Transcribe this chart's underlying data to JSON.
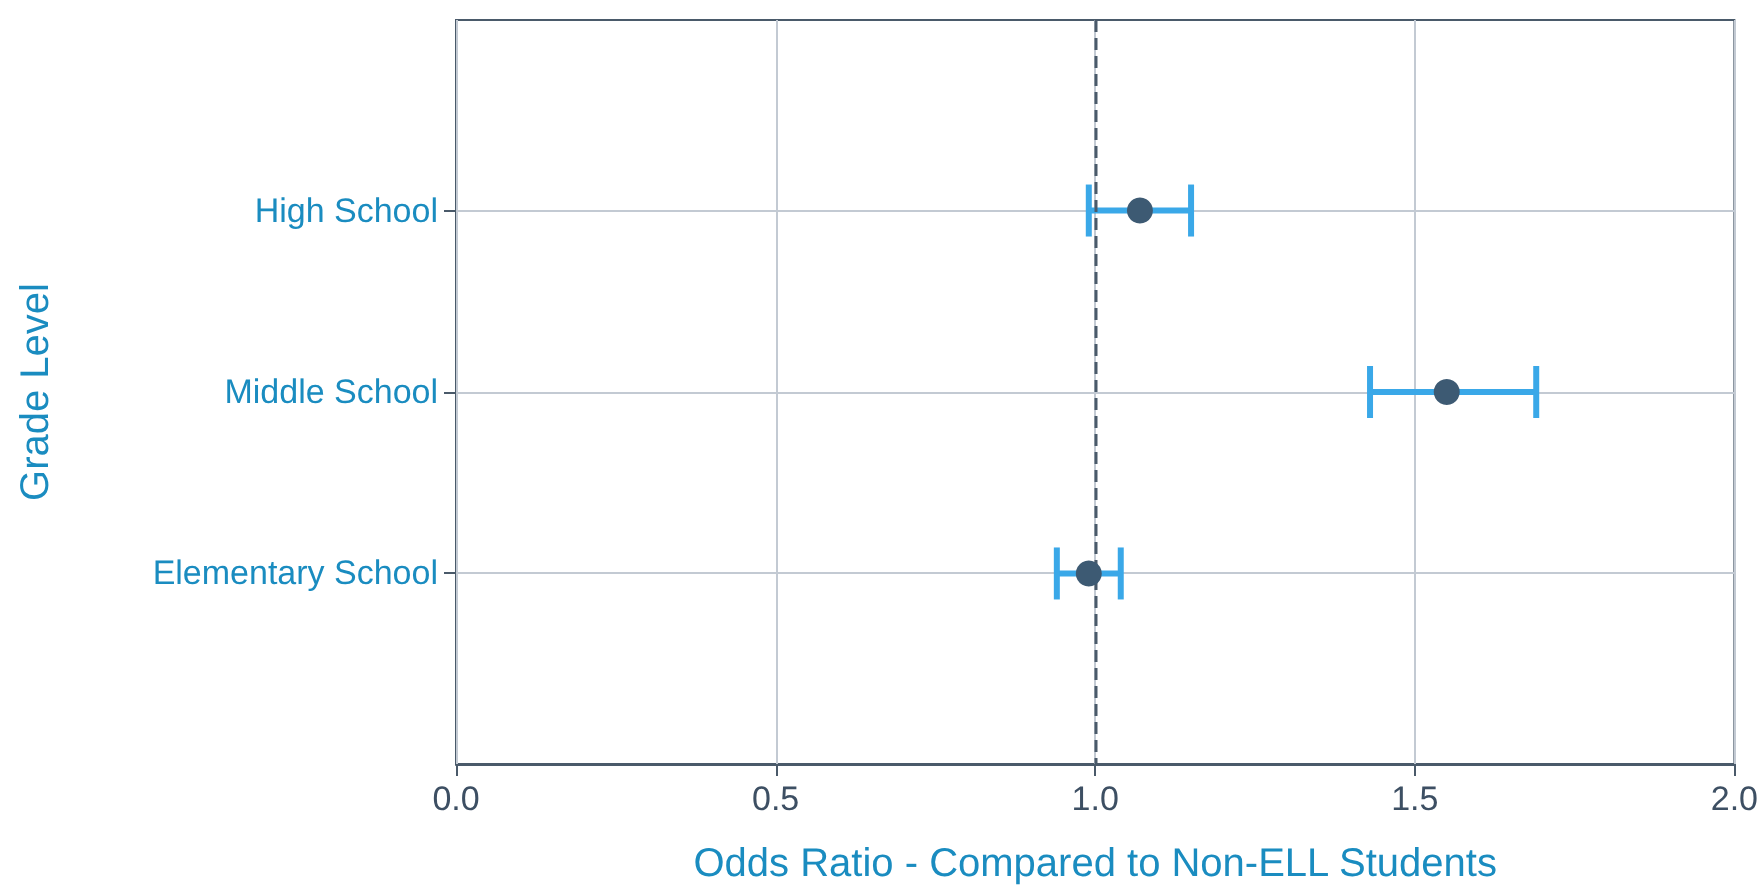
{
  "chart_data": {
    "type": "scatter",
    "orientation": "horizontal",
    "xlabel": "Odds Ratio - Compared to Non-ELL Students",
    "ylabel": "Grade Level",
    "categories": [
      "High School",
      "Middle School",
      "Elementary School"
    ],
    "series": [
      {
        "color": "#3d5a73",
        "values": [
          1.07,
          1.55,
          0.99
        ],
        "errors": [
          [
            0.99,
            1.15
          ],
          [
            1.43,
            1.69
          ],
          [
            0.94,
            1.04
          ]
        ]
      }
    ],
    "xlim": [
      0,
      2
    ],
    "xticks": [
      {
        "value": 0,
        "label": "0.0"
      },
      {
        "value": 0.5,
        "label": "0.5"
      },
      {
        "value": 1,
        "label": "1.0"
      },
      {
        "value": 1.5,
        "label": "1.5"
      },
      {
        "value": 2,
        "label": "2.0"
      }
    ],
    "ref_lines": [
      {
        "axis": "x",
        "value": 1,
        "color": "#4a5a6a",
        "line_style": "dashed"
      }
    ],
    "grid": true,
    "marker": "circle"
  }
}
